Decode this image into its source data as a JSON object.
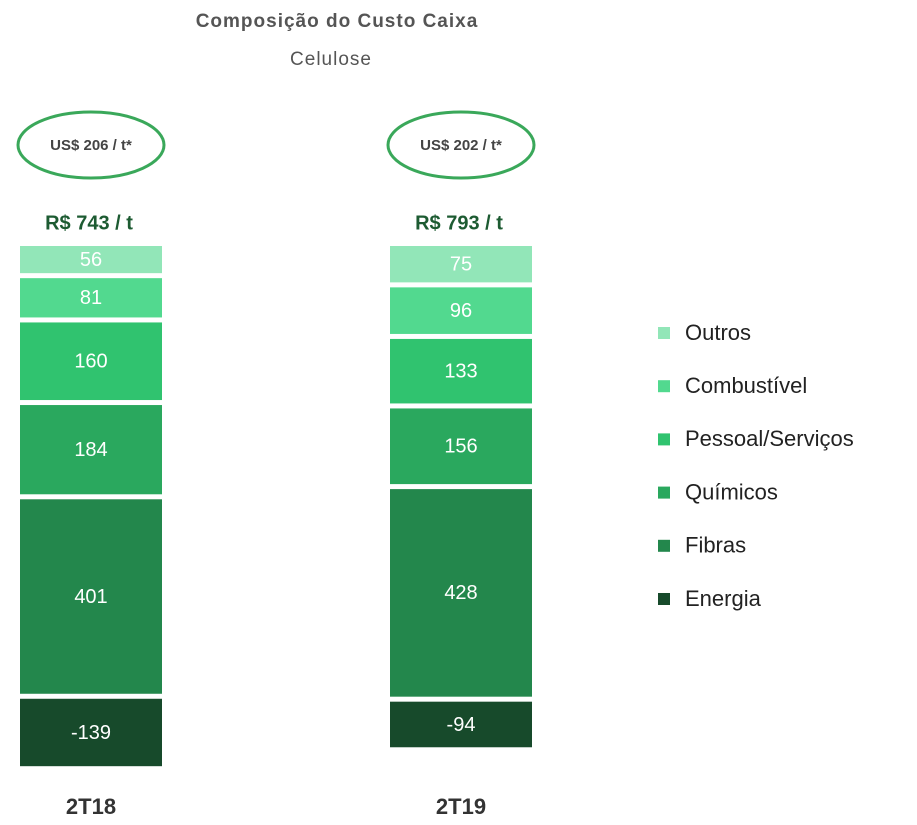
{
  "chart_data": {
    "type": "stacked-bar",
    "title": "Composição do Custo Caixa",
    "subtitle": "Celulose",
    "categories": [
      "2T18",
      "2T19"
    ],
    "usd_labels": [
      "US$ 206 / t*",
      "US$ 202 / t*"
    ],
    "total_labels": [
      "R$ 743 / t",
      "R$ 793 / t"
    ],
    "series": [
      {
        "name": "Energia",
        "color": "#174a2b",
        "values": [
          -139,
          -94
        ]
      },
      {
        "name": "Fibras",
        "color": "#23874c",
        "values": [
          401,
          428
        ]
      },
      {
        "name": "Químicos",
        "color": "#2aa85e",
        "values": [
          184,
          156
        ]
      },
      {
        "name": "Pessoal/Serviços",
        "color": "#30c36f",
        "values": [
          160,
          133
        ]
      },
      {
        "name": "Combustível",
        "color": "#52d98f",
        "values": [
          81,
          96
        ]
      },
      {
        "name": "Outros",
        "color": "#92e6b8",
        "values": [
          56,
          75
        ]
      }
    ],
    "legend": "right"
  }
}
